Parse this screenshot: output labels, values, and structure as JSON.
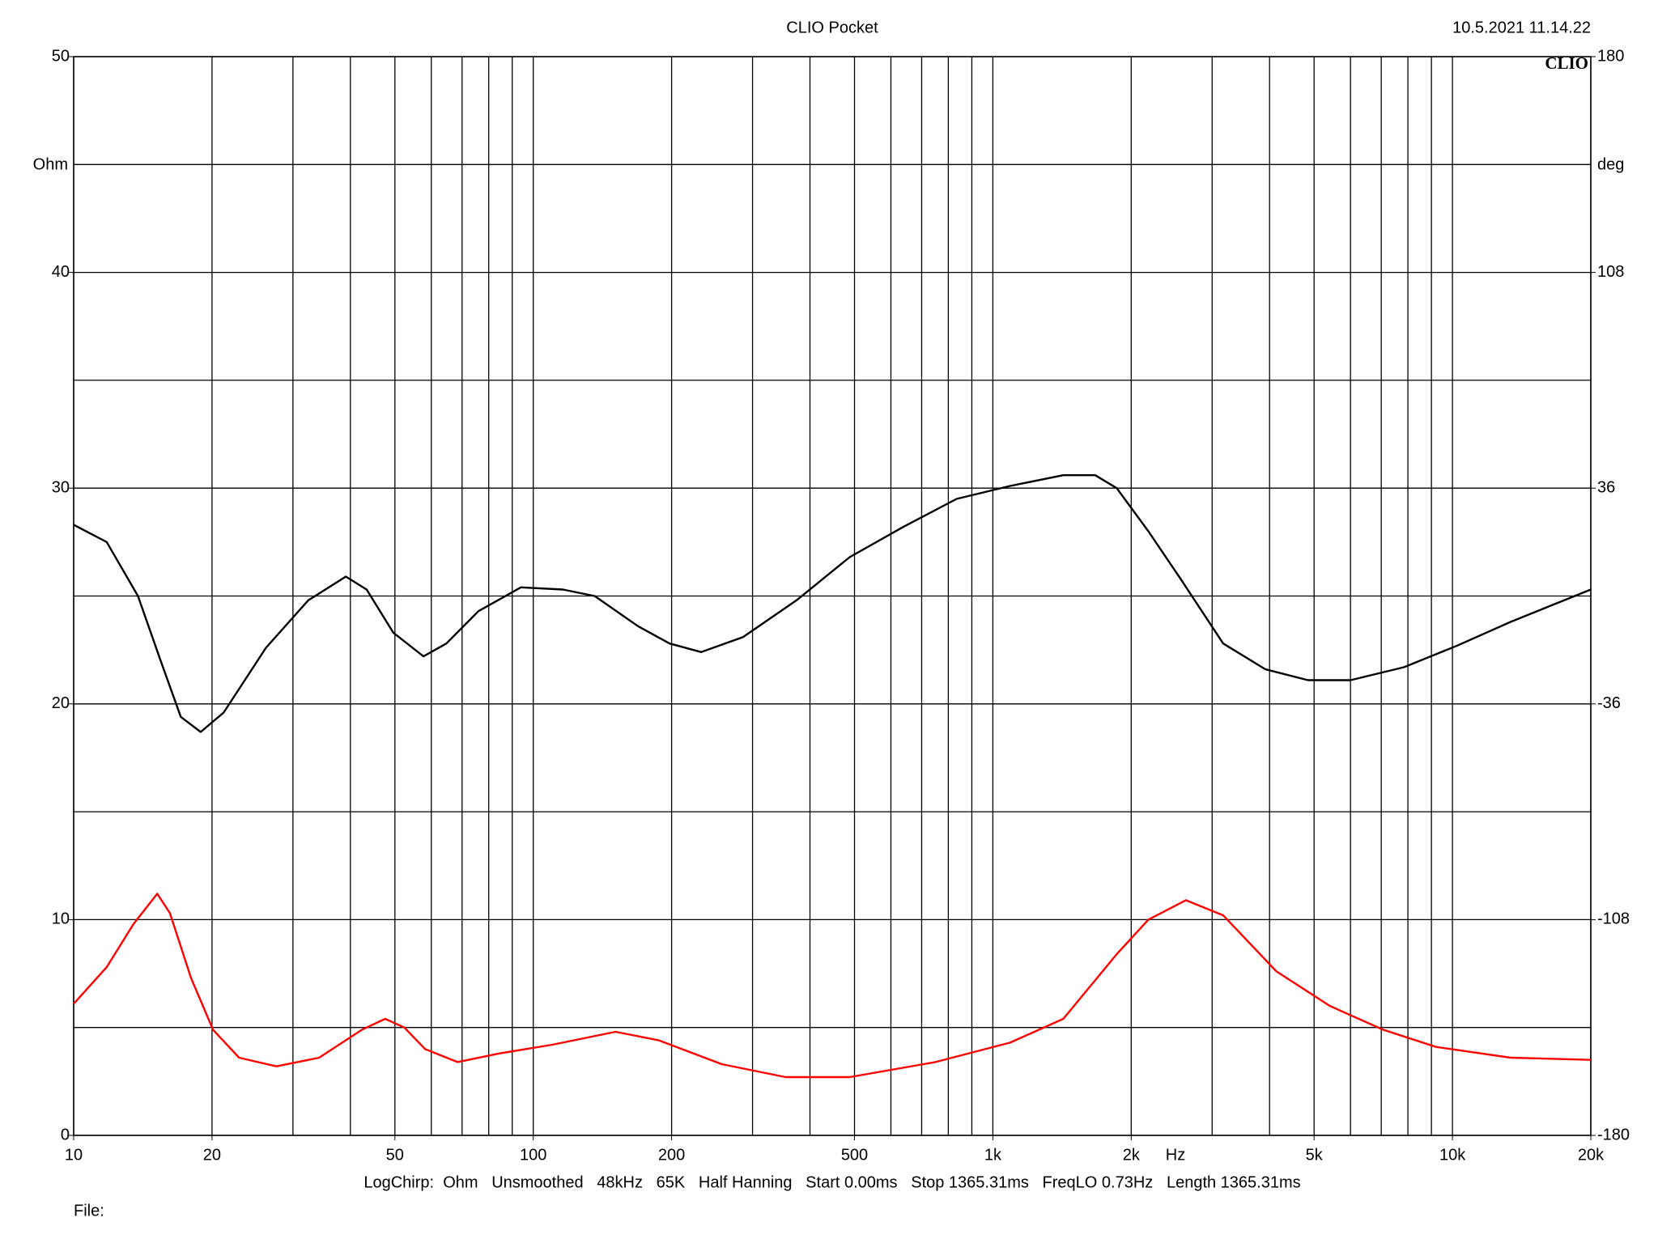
{
  "chart_data": {
    "type": "line",
    "title": "CLIO Pocket",
    "timestamp": "10.5.2021 11.14.22",
    "logo": "CLIO",
    "ylabel": "Ohm",
    "y2label": "deg",
    "xlabel": "Hz",
    "settings_line": "LogChirp:  Ohm   Unsmoothed   48kHz   65K   Half Hanning   Start 0.00ms   Stop 1365.31ms   FreqLO 0.73Hz   Length 1365.31ms",
    "file_label": "File:",
    "xscale": "log",
    "xlim": [
      10,
      20000
    ],
    "xticks": [
      10,
      20,
      50,
      100,
      200,
      500,
      {
        "value": 1000,
        "label": "1k"
      },
      {
        "value": 2000,
        "label": "2k"
      },
      {
        "value": 5000,
        "label": "5k"
      },
      {
        "value": 10000,
        "label": "10k"
      },
      {
        "value": 20000,
        "label": "20k"
      }
    ],
    "xgrid": [
      10,
      20,
      30,
      40,
      50,
      60,
      70,
      80,
      90,
      100,
      200,
      300,
      400,
      500,
      600,
      700,
      800,
      900,
      1000,
      2000,
      3000,
      4000,
      5000,
      6000,
      7000,
      8000,
      9000,
      10000,
      20000
    ],
    "ylim": [
      0,
      50
    ],
    "yticks": [
      0,
      10,
      20,
      30,
      40,
      50
    ],
    "ygrid": [
      0,
      5,
      10,
      15,
      20,
      25,
      30,
      35,
      40,
      45,
      50
    ],
    "y2lim": [
      -180,
      180
    ],
    "y2ticks": [
      180,
      108,
      36,
      -36,
      -108,
      -180
    ],
    "grid": true,
    "series": [
      {
        "color": "#000000",
        "x": [
          10,
          11.8,
          13.8,
          15.4,
          17.1,
          18.9,
          21.2,
          26.2,
          32.4,
          39.1,
          43.4,
          49.6,
          57.7,
          64.7,
          76,
          94,
          116,
          136,
          169,
          198,
          232,
          286,
          374,
          488,
          638,
          834,
          1090,
          1423,
          1670,
          1860,
          2180,
          2560,
          3170,
          3920,
          4850,
          6000,
          7840,
          10240,
          13380,
          20000
        ],
        "values": [
          28.3,
          27.5,
          25.0,
          22.1,
          19.4,
          18.7,
          19.6,
          22.6,
          24.8,
          25.9,
          25.3,
          23.3,
          22.2,
          22.8,
          24.3,
          25.4,
          25.3,
          25.0,
          23.6,
          22.8,
          22.4,
          23.1,
          24.8,
          26.8,
          28.2,
          29.5,
          30.1,
          30.6,
          30.6,
          30.0,
          28.0,
          25.8,
          22.8,
          21.6,
          21.1,
          21.1,
          21.7,
          22.7,
          23.8,
          25.3
        ]
      },
      {
        "color": "#ff0000",
        "x": [
          10,
          11.8,
          13.5,
          15.2,
          16.2,
          18.0,
          20.1,
          22.9,
          27.6,
          34.2,
          42.4,
          47.6,
          52.4,
          58.2,
          68.4,
          84.5,
          110,
          151,
          188,
          257,
          354,
          488,
          750,
          1090,
          1423,
          1860,
          2180,
          2630,
          3170,
          4140,
          5410,
          7060,
          9210,
          13380,
          20000
        ],
        "values": [
          6.1,
          7.8,
          9.8,
          11.2,
          10.3,
          7.3,
          4.9,
          3.6,
          3.2,
          3.6,
          4.9,
          5.4,
          5.0,
          4.0,
          3.4,
          3.8,
          4.2,
          4.8,
          4.4,
          3.3,
          2.7,
          2.7,
          3.4,
          4.3,
          5.4,
          8.4,
          10.0,
          10.9,
          10.2,
          7.6,
          6.0,
          4.9,
          4.1,
          3.6,
          3.5
        ]
      }
    ]
  }
}
